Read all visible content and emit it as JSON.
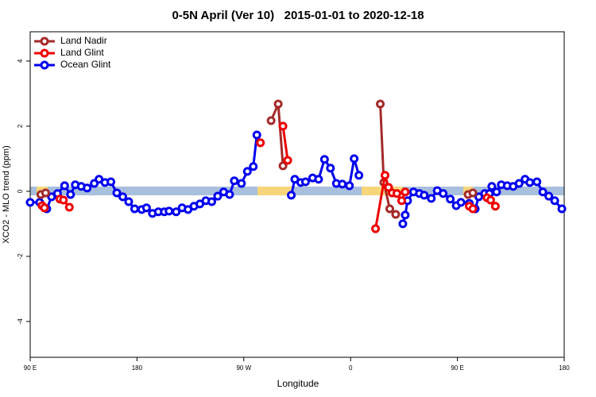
{
  "chart_data": {
    "type": "line",
    "title": "0-5N April (Ver 10)   2015-01-01 to 2020-12-18",
    "x_label": "Longitude",
    "y_label": "XCO2 - MLO trend (ppm)",
    "xlim": [
      90,
      540
    ],
    "ylim": [
      -5.1,
      4.9
    ],
    "xticks": [
      {
        "value": 90,
        "label": "90 E"
      },
      {
        "value": 180,
        "label": "180"
      },
      {
        "value": 270,
        "label": "90 W"
      },
      {
        "value": 360,
        "label": "0"
      },
      {
        "value": 450,
        "label": "90 E"
      },
      {
        "value": 540,
        "label": "180"
      }
    ],
    "yticks": [
      -4,
      -2,
      0,
      2,
      4
    ],
    "legend": "top-left",
    "series": [
      {
        "name": "Land Nadir",
        "color": "#a52a2a",
        "x": [
          99,
          103,
          null,
          293,
          299,
          303,
          null,
          385,
          388,
          393,
          398,
          null,
          459,
          463
        ],
        "values": [
          -0.1,
          -0.05,
          null,
          2.17,
          2.68,
          0.78,
          null,
          2.68,
          0.27,
          -0.54,
          -0.71,
          null,
          -0.1,
          -0.05
        ]
      },
      {
        "name": "Land Glint",
        "color": "#ee0000",
        "x": [
          100,
          102,
          null,
          115,
          118,
          123,
          null,
          284,
          null,
          303,
          307,
          null,
          381,
          389,
          392,
          395,
          399,
          403,
          406,
          null,
          460,
          463,
          null,
          475,
          478,
          482
        ],
        "values": [
          -0.44,
          -0.51,
          null,
          -0.24,
          -0.27,
          -0.49,
          null,
          1.49,
          null,
          2.0,
          0.95,
          null,
          -1.15,
          0.49,
          0.12,
          -0.05,
          -0.07,
          -0.29,
          -0.02,
          null,
          -0.46,
          -0.54,
          null,
          -0.2,
          -0.27,
          -0.46
        ]
      },
      {
        "name": "Ocean Glint",
        "color": "#0000ee",
        "x": [
          90,
          98,
          104,
          108,
          113,
          119,
          124,
          128,
          133,
          138,
          144,
          148,
          153,
          158,
          163,
          168,
          173,
          178,
          184,
          188,
          193,
          198,
          203,
          207,
          213,
          218,
          223,
          228,
          233,
          238,
          243,
          248,
          253,
          258,
          262,
          268,
          273,
          278,
          281,
          null,
          310,
          313,
          318,
          322,
          328,
          333,
          338,
          343,
          348,
          353,
          359,
          363,
          367,
          null,
          404,
          406,
          408,
          413,
          418,
          422,
          428,
          433,
          438,
          444,
          449,
          453,
          460,
          465,
          468,
          473,
          477,
          479,
          483,
          487,
          492,
          497,
          502,
          507,
          511,
          517,
          522,
          527,
          532,
          538
        ],
        "values": [
          -0.34,
          -0.34,
          -0.54,
          -0.17,
          -0.07,
          0.17,
          -0.1,
          0.2,
          0.15,
          0.1,
          0.24,
          0.37,
          0.27,
          0.29,
          -0.05,
          -0.17,
          -0.32,
          -0.54,
          -0.56,
          -0.51,
          -0.68,
          -0.63,
          -0.63,
          -0.61,
          -0.63,
          -0.51,
          -0.56,
          -0.46,
          -0.39,
          -0.29,
          -0.32,
          -0.15,
          -0.02,
          -0.1,
          0.32,
          0.24,
          0.61,
          0.76,
          1.73,
          null,
          -0.12,
          0.37,
          0.27,
          0.29,
          0.41,
          0.37,
          0.98,
          0.71,
          0.24,
          0.22,
          0.17,
          1.0,
          0.49,
          null,
          -1.0,
          -0.73,
          -0.29,
          -0.02,
          -0.07,
          -0.12,
          -0.22,
          0.02,
          -0.07,
          -0.24,
          -0.44,
          -0.34,
          -0.37,
          -0.54,
          -0.17,
          -0.07,
          -0.07,
          0.15,
          -0.02,
          0.2,
          0.17,
          0.15,
          0.24,
          0.37,
          0.27,
          0.29,
          -0.02,
          -0.15,
          -0.29,
          -0.54
        ]
      }
    ]
  }
}
